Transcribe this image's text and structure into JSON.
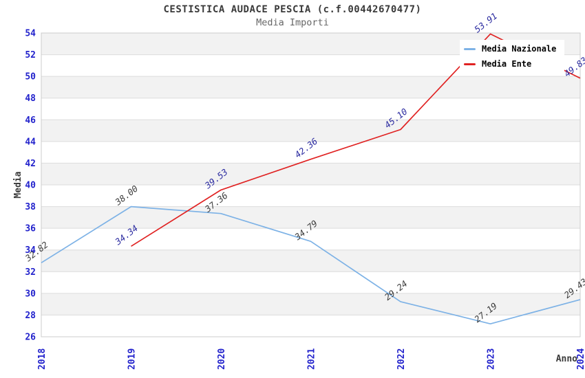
{
  "chart_data": {
    "type": "line",
    "title": "CESTISTICA AUDACE PESCIA (c.f.00442670477)",
    "subtitle": "Media Importi",
    "xlabel": "Anno",
    "ylabel": "Media",
    "x": [
      "2018",
      "2019",
      "2020",
      "2021",
      "2022",
      "2023",
      "2024"
    ],
    "ylim": [
      26,
      54
    ],
    "ytick_step": 2,
    "grid": "horizontal, with alternating shaded bands",
    "legend_position": "top-right",
    "series": [
      {
        "name": "Media Nazionale",
        "color": "#7db2e6",
        "label_color": "#3c3c3c",
        "values": [
          32.82,
          38.0,
          37.36,
          34.79,
          29.24,
          27.19,
          29.43
        ]
      },
      {
        "name": "Media Ente",
        "color": "#e02222",
        "label_color": "#2b2ba0",
        "values": [
          null,
          34.34,
          39.53,
          42.36,
          45.1,
          53.91,
          49.83
        ]
      }
    ],
    "style": {
      "tick_label_color": "#2222cc",
      "axis_title_color": "#3a3a3a",
      "band_fill": "#f2f2f2",
      "gridline_color": "#dcdcdc",
      "border_color": "#cccccc",
      "background": "#ffffff"
    }
  }
}
